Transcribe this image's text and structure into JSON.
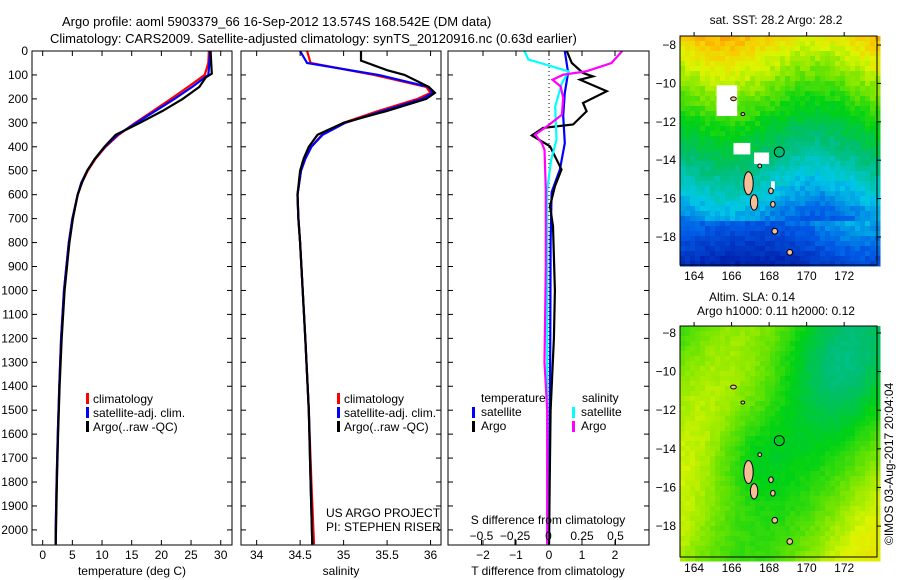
{
  "title": {
    "line1": "Argo profile: aoml 5903379_66 16-Sep-2012 13.574S 168.542E (DM data)",
    "line2": "Climatology: CARS2009. Satellite-adjusted climatology: synTS_20120916.nc (0.63d earlier)"
  },
  "credit": "©IMOS 03-Aug-2017 20:04:04",
  "project": {
    "line1": "US ARGO PROJECT",
    "line2": "PI: STEPHEN RISER"
  },
  "colors": {
    "climatology": "#ff0000",
    "satellite": "#0000ff",
    "argo": "#000000",
    "sal_satellite": "#00ffff",
    "sal_argo": "#ff00ff",
    "land": "#f5be96"
  },
  "chart_data": [
    {
      "id": "temperature",
      "type": "line",
      "xlabel": "temperature (deg C)",
      "ylabel": "",
      "xlim": [
        -1.8,
        31.9
      ],
      "ylim": [
        2063,
        0
      ],
      "xticks": [
        0,
        5,
        10,
        15,
        20,
        25,
        30
      ],
      "yticks": [
        0,
        100,
        200,
        300,
        400,
        500,
        600,
        700,
        800,
        900,
        1000,
        1100,
        1200,
        1300,
        1400,
        1500,
        1600,
        1700,
        1800,
        1900,
        2000
      ],
      "legend": [
        "climatology",
        "satellite-adj. clim.",
        "Argo(..raw -QC)"
      ],
      "series": [
        {
          "name": "climatology",
          "depth": [
            0,
            50,
            100,
            150,
            200,
            250,
            300,
            350,
            400,
            450,
            500,
            550,
            600,
            700,
            800,
            900,
            1000,
            1200,
            1400,
            1600,
            1800,
            2000,
            2060
          ],
          "values": [
            28.0,
            27.9,
            27.3,
            24.5,
            21.6,
            18.6,
            15.6,
            12.8,
            10.6,
            8.9,
            7.6,
            6.6,
            5.9,
            5.0,
            4.4,
            4.0,
            3.6,
            3.1,
            2.8,
            2.55,
            2.35,
            2.2,
            2.2
          ]
        },
        {
          "name": "satellite-adj. clim.",
          "depth": [
            0,
            50,
            100,
            150,
            200,
            250,
            300,
            350,
            400,
            450,
            500,
            550,
            600,
            700,
            800,
            900,
            1000,
            1200,
            1400,
            1600,
            1800,
            2000,
            2060
          ],
          "values": [
            28.2,
            28.1,
            27.9,
            25.2,
            22.2,
            19.0,
            15.8,
            12.6,
            10.5,
            8.8,
            7.5,
            6.5,
            5.9,
            5.0,
            4.4,
            4.0,
            3.6,
            3.1,
            2.8,
            2.55,
            2.35,
            2.2,
            2.2
          ]
        },
        {
          "name": "Argo(..raw -QC)",
          "depth": [
            0,
            50,
            95,
            110,
            150,
            200,
            250,
            300,
            350,
            400,
            450,
            500,
            550,
            600,
            700,
            800,
            900,
            1000,
            1200,
            1400,
            1600,
            1800,
            2000,
            2060
          ],
          "values": [
            28.3,
            28.4,
            28.5,
            27.5,
            26.4,
            23.6,
            20.2,
            16.4,
            12.3,
            10.4,
            8.8,
            7.5,
            6.6,
            5.9,
            5.1,
            4.5,
            4.1,
            3.7,
            3.2,
            2.85,
            2.6,
            2.4,
            2.25,
            2.2
          ]
        }
      ]
    },
    {
      "id": "salinity",
      "type": "line",
      "xlabel": "salinity",
      "xlim": [
        33.82,
        36.12
      ],
      "ylim": [
        2063,
        0
      ],
      "xticks": [
        34,
        34.5,
        35,
        35.5,
        36
      ],
      "legend": [
        "climatology",
        "satellite-adj. clim.",
        "Argo(..raw -QC)"
      ],
      "series": [
        {
          "name": "climatology",
          "depth": [
            0,
            50,
            100,
            150,
            175,
            200,
            250,
            300,
            350,
            400,
            450,
            500,
            600,
            700,
            800,
            1000,
            1200,
            1500,
            1800,
            2060
          ],
          "values": [
            34.58,
            34.62,
            35.35,
            35.95,
            36.0,
            35.85,
            35.4,
            35.0,
            34.75,
            34.63,
            34.56,
            34.51,
            34.47,
            34.48,
            34.5,
            34.53,
            34.56,
            34.6,
            34.63,
            34.66
          ]
        },
        {
          "name": "satellite-adj. clim.",
          "depth": [
            0,
            50,
            100,
            150,
            175,
            200,
            250,
            300,
            350,
            400,
            450,
            500,
            600,
            700,
            800,
            1000,
            1200,
            1500,
            1800,
            2060
          ],
          "values": [
            34.5,
            34.58,
            35.4,
            35.98,
            36.02,
            35.9,
            35.45,
            35.02,
            34.76,
            34.63,
            34.56,
            34.51,
            34.47,
            34.48,
            34.5,
            34.53,
            34.56,
            34.6,
            34.62,
            34.64
          ]
        },
        {
          "name": "Argo(..raw -QC)",
          "depth": [
            0,
            40,
            80,
            100,
            150,
            175,
            200,
            250,
            300,
            350,
            400,
            450,
            500,
            600,
            700,
            800,
            1000,
            1200,
            1500,
            1800,
            2060
          ],
          "values": [
            35.2,
            35.2,
            35.5,
            35.7,
            35.98,
            36.05,
            35.95,
            35.5,
            35.0,
            34.7,
            34.6,
            34.54,
            34.5,
            34.47,
            34.48,
            34.5,
            34.53,
            34.56,
            34.6,
            34.62,
            34.64
          ]
        }
      ]
    },
    {
      "id": "difference",
      "type": "line",
      "xlabel": "T difference from climatology",
      "x2label": "S difference from climatology",
      "xlim": [
        -3.06,
        3.03
      ],
      "x2lim": [
        -0.75,
        0.75
      ],
      "ylim": [
        2063,
        0
      ],
      "xticks": [
        -2,
        -1,
        0,
        1,
        2
      ],
      "x2ticks": [
        -0.5,
        -0.25,
        0,
        0.25,
        0.5
      ],
      "legend_titles": [
        "temperature",
        "salinity"
      ],
      "legend": [
        "satellite",
        "Argo",
        "satellite",
        "Argo"
      ],
      "series": [
        {
          "name": "temperature satellite",
          "axis": "T",
          "depth": [
            0,
            90,
            175,
            270,
            385,
            495,
            590,
            800,
            1200,
            1600,
            2060
          ],
          "values": [
            0.48,
            0.58,
            0.48,
            0.43,
            0.48,
            0.33,
            0.08,
            0.05,
            0.04,
            0.02,
            0.0
          ]
        },
        {
          "name": "temperature Argo",
          "axis": "T",
          "depth": [
            0,
            50,
            92,
            106,
            120,
            168,
            217,
            252,
            307,
            321,
            353,
            398,
            495,
            565,
            648,
            732,
            1000,
            1200,
            1500,
            1800,
            2060
          ],
          "values": [
            0.54,
            0.69,
            1.03,
            1.33,
            0.94,
            1.75,
            1.03,
            1.14,
            0.73,
            -0.18,
            -0.52,
            0.03,
            0.38,
            0.18,
            0.03,
            0.12,
            0.18,
            0.15,
            0.05,
            0.02,
            0.0
          ]
        },
        {
          "name": "salinity satellite",
          "axis": "S",
          "depth": [
            0,
            36,
            50,
            85,
            134,
            232,
            370,
            454,
            579,
            1000,
            1500,
            2060
          ],
          "values": [
            -0.18,
            -0.15,
            -0.06,
            0.15,
            0.1,
            0.05,
            0.06,
            0.02,
            -0.01,
            -0.01,
            -0.01,
            -0.01
          ]
        },
        {
          "name": "salinity Argo",
          "axis": "S",
          "depth": [
            0,
            50,
            85,
            99,
            120,
            148,
            196,
            266,
            314,
            349,
            384,
            412,
            579,
            900,
            1300,
            1500,
            2060
          ],
          "values": [
            0.55,
            0.47,
            0.28,
            0.11,
            0.03,
            0.09,
            0.11,
            0.1,
            -0.01,
            -0.1,
            -0.05,
            -0.03,
            -0.02,
            -0.02,
            -0.03,
            -0.01,
            -0.01
          ]
        }
      ]
    },
    {
      "id": "sst-map",
      "type": "heatmap",
      "title": "sat. SST: 28.2 Argo: 28.2",
      "xlim": [
        163.25,
        173.75
      ],
      "ylim": [
        -19.46,
        -7.53
      ],
      "xticks": [
        164,
        166,
        168,
        170,
        172
      ],
      "yticks": [
        -8,
        -10,
        -12,
        -14,
        -16,
        -18
      ],
      "marker": {
        "lon": 168.542,
        "lat": -13.574
      }
    },
    {
      "id": "sla-map",
      "type": "heatmap",
      "title": "Altim. SLA: 0.14",
      "subtitle": "Argo h1000: 0.11 h2000: 0.12",
      "xlim": [
        163.25,
        173.75
      ],
      "ylim": [
        -19.6,
        -7.64
      ],
      "xticks": [
        164,
        166,
        168,
        170,
        172
      ],
      "yticks": [
        -8,
        -10,
        -12,
        -14,
        -16,
        -18
      ],
      "marker": {
        "lon": 168.542,
        "lat": -13.574
      }
    }
  ]
}
